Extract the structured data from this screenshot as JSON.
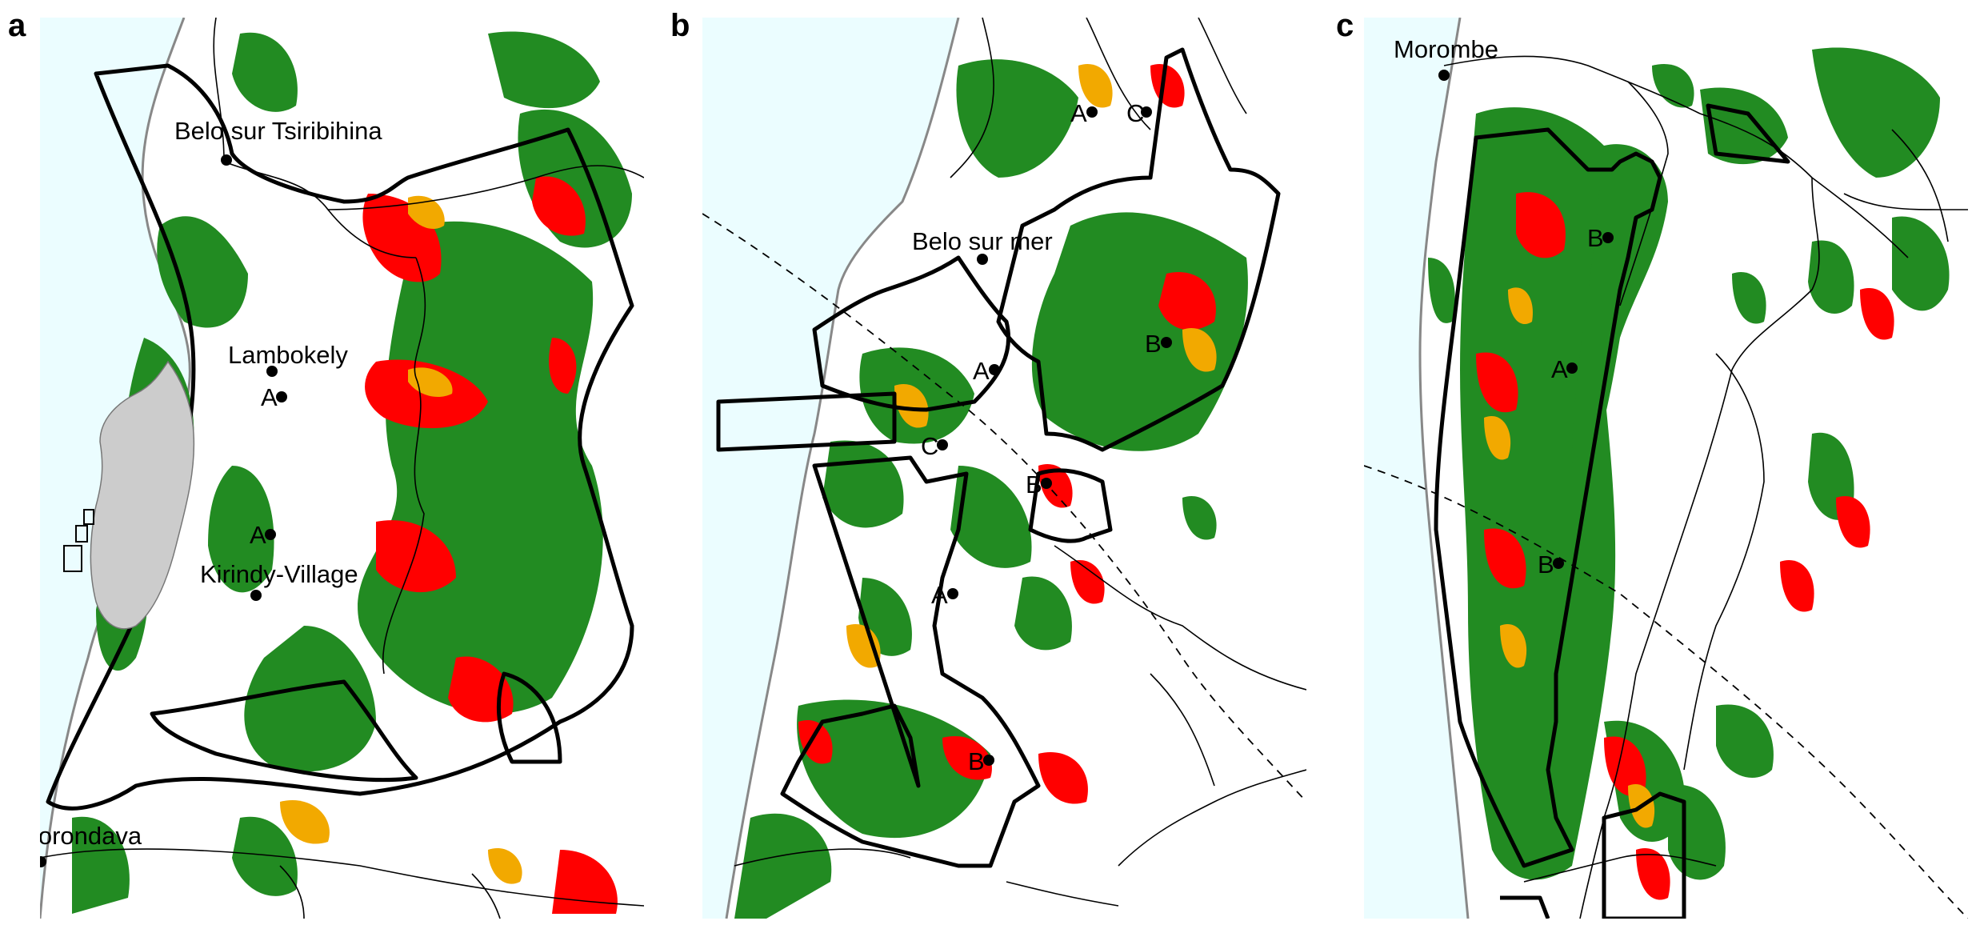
{
  "colors": {
    "sea": "#ebfdff",
    "forest": "#228b22",
    "loss_red": "#ff0000",
    "loss_orange": "#f2a900",
    "boundary": "#000000",
    "road": "#000000",
    "coast": "#888888",
    "madagascar": "#cccccc"
  },
  "panels": [
    {
      "letter": "a",
      "towns": [
        "Belo sur Tsiribihina",
        "Lambokely",
        "Kirindy-Village",
        "Morondava"
      ],
      "sites": [
        "A",
        "A"
      ]
    },
    {
      "letter": "b",
      "towns": [
        "Belo sur mer"
      ],
      "sites": [
        "A",
        "C",
        "B",
        "A",
        "C",
        "B",
        "A",
        "B"
      ]
    },
    {
      "letter": "c",
      "towns": [
        "Morombe"
      ],
      "sites": [
        "B",
        "A",
        "B"
      ]
    }
  ]
}
